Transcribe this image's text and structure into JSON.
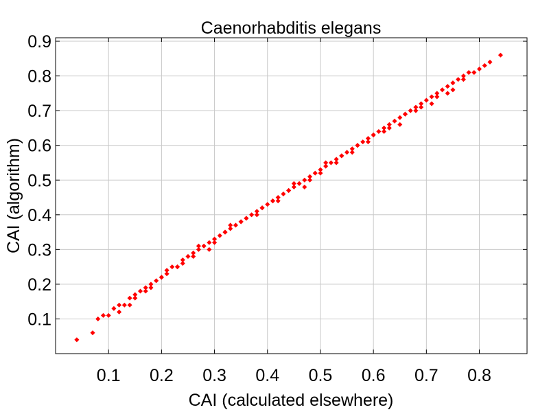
{
  "chart_data": {
    "type": "scatter",
    "title": "Caenorhabditis elegans",
    "xlabel": "CAI (calculated elsewhere)",
    "ylabel": "CAI (algorithm)",
    "xlim": [
      0.0,
      0.89
    ],
    "ylim": [
      0.0,
      0.91
    ],
    "xticks": [
      0.1,
      0.2,
      0.3,
      0.4,
      0.5,
      0.6,
      0.7,
      0.8
    ],
    "yticks": [
      0.1,
      0.2,
      0.3,
      0.4,
      0.5,
      0.6,
      0.7,
      0.8,
      0.9
    ],
    "xtick_labels": [
      "0.1",
      "0.2",
      "0.3",
      "0.4",
      "0.5",
      "0.6",
      "0.7",
      "0.8"
    ],
    "ytick_labels": [
      "0.1",
      "0.2",
      "0.3",
      "0.4",
      "0.5",
      "0.6",
      "0.7",
      "0.8",
      "0.9"
    ],
    "grid": true,
    "marker_color": "#ff0000",
    "series": [
      {
        "x": [
          0.04,
          0.07,
          0.08,
          0.09,
          0.1,
          0.11,
          0.12,
          0.13,
          0.14,
          0.15,
          0.16,
          0.17,
          0.18,
          0.19,
          0.2,
          0.21,
          0.22,
          0.23,
          0.24,
          0.25,
          0.26,
          0.27,
          0.28,
          0.29,
          0.3,
          0.31,
          0.32,
          0.33,
          0.34,
          0.35,
          0.36,
          0.37,
          0.38,
          0.39,
          0.4,
          0.41,
          0.42,
          0.43,
          0.44,
          0.45,
          0.46,
          0.47,
          0.48,
          0.49,
          0.5,
          0.51,
          0.52,
          0.53,
          0.54,
          0.55,
          0.56,
          0.57,
          0.58,
          0.59,
          0.6,
          0.61,
          0.62,
          0.63,
          0.64,
          0.65,
          0.66,
          0.67,
          0.68,
          0.69,
          0.7,
          0.71,
          0.72,
          0.73,
          0.74,
          0.75,
          0.76,
          0.77,
          0.78,
          0.79,
          0.8,
          0.81,
          0.82,
          0.84,
          0.12,
          0.15,
          0.18,
          0.21,
          0.24,
          0.27,
          0.3,
          0.33,
          0.36,
          0.39,
          0.42,
          0.45,
          0.48,
          0.51,
          0.54,
          0.57,
          0.6,
          0.63,
          0.66,
          0.69,
          0.72,
          0.75,
          0.14,
          0.17,
          0.2,
          0.23,
          0.26,
          0.29,
          0.32,
          0.35,
          0.38,
          0.41,
          0.44,
          0.47,
          0.5,
          0.53,
          0.56,
          0.59,
          0.62,
          0.65,
          0.68,
          0.71,
          0.74,
          0.77
        ],
        "y": [
          0.04,
          0.06,
          0.1,
          0.11,
          0.11,
          0.13,
          0.14,
          0.14,
          0.16,
          0.16,
          0.18,
          0.19,
          0.2,
          0.21,
          0.22,
          0.23,
          0.25,
          0.25,
          0.27,
          0.28,
          0.29,
          0.3,
          0.31,
          0.32,
          0.33,
          0.34,
          0.35,
          0.36,
          0.37,
          0.38,
          0.39,
          0.4,
          0.41,
          0.42,
          0.43,
          0.44,
          0.45,
          0.46,
          0.47,
          0.48,
          0.49,
          0.5,
          0.51,
          0.52,
          0.53,
          0.54,
          0.55,
          0.56,
          0.57,
          0.58,
          0.59,
          0.6,
          0.61,
          0.62,
          0.63,
          0.64,
          0.65,
          0.66,
          0.67,
          0.68,
          0.69,
          0.7,
          0.71,
          0.72,
          0.73,
          0.74,
          0.75,
          0.76,
          0.77,
          0.78,
          0.79,
          0.8,
          0.81,
          0.81,
          0.82,
          0.83,
          0.84,
          0.86,
          0.12,
          0.17,
          0.19,
          0.24,
          0.26,
          0.31,
          0.32,
          0.37,
          0.39,
          0.42,
          0.44,
          0.49,
          0.5,
          0.55,
          0.57,
          0.6,
          0.63,
          0.65,
          0.69,
          0.71,
          0.74,
          0.76,
          0.14,
          0.18,
          0.22,
          0.25,
          0.28,
          0.3,
          0.35,
          0.38,
          0.4,
          0.44,
          0.47,
          0.48,
          0.52,
          0.55,
          0.58,
          0.61,
          0.64,
          0.66,
          0.7,
          0.72,
          0.75,
          0.79
        ]
      }
    ]
  }
}
